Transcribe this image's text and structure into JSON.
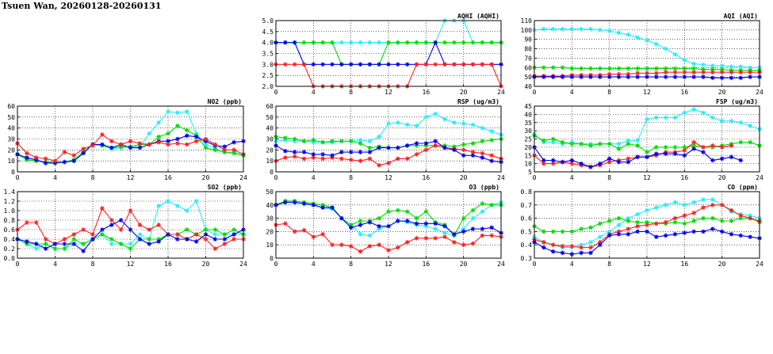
{
  "page_title": "Tsuen Wan, 20260128-20260131",
  "colors": {
    "red": "#ff2020",
    "green": "#00dd00",
    "blue": "#0000ee",
    "cyan": "#22eeff"
  },
  "chart_data": [
    {
      "id": "aqhi",
      "type": "line",
      "title": "AQHI (AQHI)",
      "x_ticks": [
        0,
        4,
        8,
        12,
        16,
        20,
        24
      ],
      "ylim": [
        2.0,
        5.0
      ],
      "y_ticks": [
        "2.0",
        "2.5",
        "3.0",
        "3.5",
        "4.0",
        "4.5",
        "5.0"
      ],
      "series": [
        {
          "color": "cyan",
          "values": [
            4,
            4,
            4,
            4,
            4,
            4,
            4,
            4,
            4,
            4,
            4,
            4,
            4,
            4,
            4,
            4,
            4,
            4,
            5,
            5,
            5,
            4,
            4,
            4,
            4
          ]
        },
        {
          "color": "green",
          "values": [
            4,
            4,
            4,
            4,
            4,
            4,
            4,
            3,
            3,
            3,
            3,
            3,
            4,
            4,
            4,
            4,
            4,
            4,
            4,
            4,
            4,
            4,
            4,
            4,
            4
          ]
        },
        {
          "color": "blue",
          "values": [
            4,
            4,
            4,
            3,
            3,
            3,
            3,
            3,
            3,
            3,
            3,
            3,
            3,
            3,
            3,
            3,
            3,
            4,
            3,
            3,
            3,
            3,
            3,
            3,
            3
          ]
        },
        {
          "color": "red",
          "values": [
            3,
            3,
            3,
            3,
            2,
            2,
            2,
            2,
            2,
            2,
            2,
            2,
            2,
            2,
            2,
            3,
            3,
            3,
            3,
            3,
            3,
            3,
            3,
            3,
            2
          ]
        }
      ]
    },
    {
      "id": "aqi",
      "type": "line",
      "title": "AQI (AQI)",
      "x_ticks": [
        0,
        4,
        8,
        12,
        16,
        20,
        24
      ],
      "ylim": [
        40,
        110
      ],
      "y_ticks": [
        "40",
        "50",
        "60",
        "70",
        "80",
        "90",
        "100",
        "110"
      ],
      "series": [
        {
          "color": "cyan",
          "values": [
            100,
            101,
            101,
            101,
            101,
            101,
            101,
            100,
            99,
            97,
            95,
            92,
            89,
            85,
            80,
            74,
            68,
            64,
            63,
            62,
            62,
            61,
            61,
            60,
            60
          ]
        },
        {
          "color": "green",
          "values": [
            60,
            60,
            60,
            60,
            59,
            59,
            59,
            59,
            59,
            59,
            59,
            59,
            59,
            59,
            59,
            59,
            59,
            59,
            58,
            58,
            58,
            57,
            57,
            57,
            57
          ]
        },
        {
          "color": "red",
          "values": [
            51,
            51,
            51,
            51,
            52,
            52,
            52,
            52,
            53,
            53,
            53,
            54,
            54,
            54,
            55,
            55,
            55,
            55,
            55,
            55,
            55,
            55,
            55,
            55,
            55
          ]
        },
        {
          "color": "blue",
          "values": [
            50,
            50,
            50,
            50,
            50,
            50,
            50,
            50,
            50,
            50,
            50,
            50,
            50,
            50,
            50,
            50,
            50,
            50,
            50,
            49,
            49,
            49,
            49,
            50,
            50
          ]
        }
      ]
    },
    {
      "id": "no2",
      "type": "line",
      "title": "NO2 (ppb)",
      "x_ticks": [
        0,
        4,
        8,
        12,
        16,
        20,
        24
      ],
      "ylim": [
        0,
        60
      ],
      "y_ticks": [
        "0",
        "10",
        "20",
        "30",
        "40",
        "50",
        "60"
      ],
      "series": [
        {
          "color": "cyan",
          "values": [
            16,
            12,
            10,
            9,
            8,
            9,
            10,
            18,
            25,
            24,
            21,
            22,
            23,
            23,
            35,
            45,
            55,
            54,
            55,
            35,
            25,
            22,
            18,
            18,
            15
          ]
        },
        {
          "color": "green",
          "values": [
            16,
            11,
            10,
            9,
            9,
            9,
            11,
            18,
            25,
            24,
            22,
            23,
            23,
            25,
            25,
            32,
            35,
            42,
            38,
            33,
            22,
            20,
            18,
            17,
            15
          ]
        },
        {
          "color": "blue",
          "values": [
            16,
            13,
            11,
            8,
            8,
            9,
            10,
            17,
            25,
            25,
            22,
            25,
            22,
            22,
            25,
            28,
            28,
            30,
            33,
            32,
            28,
            24,
            23,
            27,
            28
          ]
        },
        {
          "color": "red",
          "values": [
            26,
            17,
            13,
            12,
            10,
            18,
            15,
            21,
            24,
            34,
            28,
            25,
            28,
            26,
            25,
            27,
            25,
            26,
            25,
            28,
            30,
            25,
            20,
            20,
            16
          ]
        }
      ]
    },
    {
      "id": "rsp",
      "type": "line",
      "title": "RSP (ug/m3)",
      "x_ticks": [
        0,
        4,
        8,
        12,
        16,
        20,
        24
      ],
      "ylim": [
        0,
        60
      ],
      "y_ticks": [
        "0",
        "10",
        "20",
        "30",
        "40",
        "50",
        "60"
      ],
      "series": [
        {
          "color": "cyan",
          "values": [
            28,
            29,
            28,
            28,
            27,
            27,
            27,
            28,
            28,
            29,
            28,
            32,
            44,
            45,
            43,
            42,
            50,
            53,
            48,
            45,
            44,
            43,
            40,
            37,
            34
          ]
        },
        {
          "color": "green",
          "values": [
            32,
            31,
            30,
            28,
            29,
            27,
            28,
            28,
            28,
            26,
            22,
            23,
            22,
            22,
            24,
            24,
            24,
            24,
            24,
            23,
            25,
            26,
            28,
            29,
            30
          ]
        },
        {
          "color": "red",
          "values": [
            10,
            13,
            14,
            12,
            13,
            12,
            13,
            12,
            11,
            10,
            12,
            6,
            8,
            12,
            12,
            16,
            20,
            24,
            22,
            21,
            20,
            18,
            17,
            15,
            12
          ]
        },
        {
          "color": "blue",
          "values": [
            24,
            19,
            18,
            18,
            16,
            16,
            15,
            18,
            18,
            18,
            18,
            22,
            22,
            22,
            24,
            26,
            26,
            28,
            22,
            20,
            15,
            15,
            13,
            10,
            9
          ]
        }
      ]
    },
    {
      "id": "fsp",
      "type": "line",
      "title": "FSP (ug/m3)",
      "x_ticks": [
        0,
        4,
        8,
        12,
        16,
        20,
        24
      ],
      "ylim": [
        5,
        45
      ],
      "y_ticks": [
        "5",
        "10",
        "15",
        "20",
        "25",
        "30",
        "35",
        "40",
        "45"
      ],
      "series": [
        {
          "color": "cyan",
          "values": [
            28,
            23,
            23,
            22,
            23,
            22,
            22,
            22,
            22,
            22,
            24,
            24,
            37,
            38,
            38,
            38,
            41,
            43,
            41,
            38,
            36,
            36,
            35,
            33,
            31
          ]
        },
        {
          "color": "green",
          "values": [
            27,
            24,
            25,
            23,
            22,
            22,
            21,
            22,
            22,
            19,
            22,
            21,
            17,
            20,
            20,
            20,
            20,
            21,
            20,
            20,
            21,
            22,
            23,
            23,
            21
          ]
        },
        {
          "color": "red",
          "values": [
            15,
            10,
            10,
            11,
            10,
            9,
            8,
            9,
            11,
            12,
            13,
            14,
            14,
            15,
            17,
            17,
            18,
            23,
            20,
            21,
            20,
            21,
            null,
            null,
            null
          ]
        },
        {
          "color": "blue",
          "values": [
            20,
            12,
            12,
            11,
            12,
            10,
            8,
            10,
            13,
            11,
            11,
            14,
            14,
            16,
            16,
            16,
            15,
            19,
            17,
            12,
            13,
            14,
            12,
            null,
            null
          ]
        }
      ]
    },
    {
      "id": "so2",
      "type": "line",
      "title": "SO2 (ppb)",
      "x_ticks": [
        0,
        4,
        8,
        12,
        16,
        20,
        24
      ],
      "ylim": [
        0,
        1.4
      ],
      "y_ticks": [
        "0.0",
        "0.2",
        "0.4",
        "0.6",
        "0.8",
        "1.0",
        "1.2",
        "1.4"
      ],
      "series": [
        {
          "color": "cyan",
          "values": [
            0.4,
            0.3,
            0.2,
            0.3,
            0.2,
            0.2,
            0.3,
            0.3,
            0.4,
            0.5,
            0.3,
            0.3,
            0.3,
            0.5,
            0.4,
            1.1,
            1.2,
            1.1,
            1.0,
            1.2,
            0.6,
            0.5,
            0.5,
            0.5,
            0.5
          ]
        },
        {
          "color": "green",
          "values": [
            0.4,
            0.3,
            0.3,
            0.3,
            0.2,
            0.2,
            0.4,
            0.3,
            0.4,
            0.5,
            0.4,
            0.3,
            0.2,
            0.4,
            0.4,
            0.4,
            0.5,
            0.5,
            0.6,
            0.5,
            0.6,
            0.6,
            0.5,
            0.6,
            0.5
          ]
        },
        {
          "color": "red",
          "values": [
            0.6,
            0.75,
            0.75,
            0.4,
            0.3,
            0.4,
            0.5,
            0.6,
            0.5,
            1.05,
            0.8,
            0.6,
            1.0,
            0.7,
            0.6,
            0.7,
            0.5,
            0.5,
            0.4,
            0.5,
            0.4,
            0.2,
            0.3,
            0.4,
            0.4
          ]
        },
        {
          "color": "blue",
          "values": [
            0.4,
            0.35,
            0.3,
            0.2,
            0.3,
            0.3,
            0.3,
            0.15,
            0.4,
            0.6,
            0.7,
            0.8,
            0.6,
            0.4,
            0.3,
            0.35,
            0.5,
            0.4,
            0.4,
            0.35,
            0.5,
            0.4,
            0.4,
            0.5,
            0.6
          ]
        }
      ]
    },
    {
      "id": "o3",
      "type": "line",
      "title": "O3 (ppb)",
      "x_ticks": [
        0,
        4,
        8,
        12,
        16,
        20,
        24
      ],
      "ylim": [
        0,
        50
      ],
      "y_ticks": [
        "0",
        "10",
        "20",
        "30",
        "40",
        "50"
      ],
      "series": [
        {
          "color": "cyan",
          "values": [
            40,
            42,
            42,
            41,
            40,
            38,
            37,
            30,
            25,
            18,
            17,
            22,
            24,
            28,
            27,
            25,
            24,
            22,
            19,
            17,
            22,
            30,
            35,
            40,
            42
          ]
        },
        {
          "color": "green",
          "values": [
            40,
            43,
            43,
            42,
            41,
            40,
            38,
            30,
            25,
            28,
            28,
            30,
            35,
            36,
            35,
            30,
            35,
            27,
            25,
            17,
            30,
            36,
            41,
            40,
            40
          ]
        },
        {
          "color": "blue",
          "values": [
            40,
            42,
            42,
            41,
            40,
            38,
            38,
            30,
            23,
            25,
            27,
            24,
            24,
            28,
            28,
            26,
            26,
            26,
            24,
            18,
            20,
            22,
            22,
            23,
            19
          ]
        },
        {
          "color": "red",
          "values": [
            25,
            26,
            20,
            21,
            16,
            18,
            10,
            10,
            9,
            5,
            9,
            10,
            6,
            8,
            12,
            15,
            15,
            15,
            16,
            12,
            10,
            11,
            17,
            17,
            16
          ]
        }
      ]
    },
    {
      "id": "co",
      "type": "line",
      "title": "CO (ppm)",
      "x_ticks": [
        0,
        4,
        8,
        12,
        16,
        20,
        24
      ],
      "ylim": [
        0.3,
        0.8
      ],
      "y_ticks": [
        "0.3",
        "0.4",
        "0.5",
        "0.6",
        "0.7",
        "0.8"
      ],
      "series": [
        {
          "color": "cyan",
          "values": [
            0.46,
            0.42,
            0.4,
            0.38,
            0.38,
            0.4,
            0.42,
            0.46,
            0.5,
            0.55,
            0.6,
            0.63,
            0.66,
            0.68,
            0.7,
            0.72,
            0.7,
            0.72,
            0.74,
            0.74,
            0.7,
            0.65,
            0.63,
            0.62,
            0.6
          ]
        },
        {
          "color": "green",
          "values": [
            0.54,
            0.5,
            0.5,
            0.5,
            0.5,
            0.52,
            0.53,
            0.56,
            0.58,
            0.6,
            0.58,
            0.57,
            0.57,
            0.56,
            0.56,
            0.57,
            0.56,
            0.58,
            0.6,
            0.6,
            0.58,
            0.58,
            0.6,
            0.6,
            0.57
          ]
        },
        {
          "color": "red",
          "values": [
            0.44,
            0.42,
            0.4,
            0.39,
            0.39,
            0.38,
            0.38,
            0.42,
            0.48,
            0.5,
            0.52,
            0.54,
            0.55,
            0.56,
            0.57,
            0.6,
            0.62,
            0.64,
            0.68,
            0.7,
            0.7,
            0.66,
            0.62,
            0.6,
            0.58
          ]
        },
        {
          "color": "blue",
          "values": [
            0.42,
            0.38,
            0.35,
            0.34,
            0.33,
            0.34,
            0.34,
            0.4,
            0.47,
            0.48,
            0.48,
            0.5,
            0.5,
            0.46,
            0.47,
            0.48,
            0.49,
            0.5,
            0.5,
            0.52,
            0.5,
            0.48,
            0.47,
            0.46,
            0.45
          ]
        }
      ]
    }
  ]
}
